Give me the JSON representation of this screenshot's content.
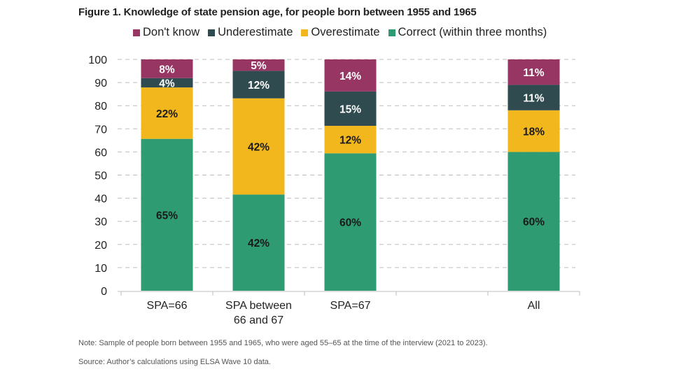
{
  "chart_data": {
    "type": "bar",
    "stacked": true,
    "title": "Figure 1. Knowledge of state pension age, for people born between 1955 and 1965",
    "categories": [
      [
        "SPA=66"
      ],
      [
        "SPA between",
        "66 and 67"
      ],
      [
        "SPA=67"
      ],
      [
        ""
      ],
      [
        "All"
      ]
    ],
    "series": [
      {
        "name": "Correct (within three months)",
        "color": "#2e9b72",
        "label_color": "#1a1a1a",
        "values": [
          65,
          42,
          60,
          null,
          60
        ]
      },
      {
        "name": "Overestimate",
        "color": "#f2b71c",
        "label_color": "#1a1a1a",
        "values": [
          22,
          42,
          12,
          null,
          18
        ]
      },
      {
        "name": "Underestimate",
        "color": "#2f4b50",
        "label_color": "#ffffff",
        "values": [
          4,
          12,
          15,
          null,
          11
        ]
      },
      {
        "name": "Don't know",
        "color": "#973563",
        "label_color": "#ffffff",
        "values": [
          8,
          5,
          14,
          null,
          11
        ]
      }
    ],
    "legend_order": [
      "Don't know",
      "Underestimate",
      "Overestimate",
      "Correct (within three months)"
    ],
    "legend_placement": "top",
    "ylim": [
      0,
      100
    ],
    "yticks": [
      0,
      10,
      20,
      30,
      40,
      50,
      60,
      70,
      80,
      90,
      100
    ],
    "grid": "horizontal dashed",
    "value_suffix": "%"
  },
  "notes": {
    "note": "Note: Sample of people born between 1955 and 1965, who were aged 55–65 at the time of the interview (2021 to 2023).",
    "source": "Source: Author’s calculations using ELSA Wave 10 data."
  }
}
